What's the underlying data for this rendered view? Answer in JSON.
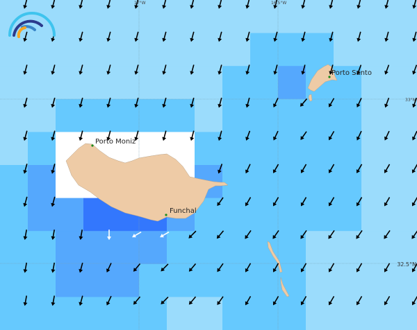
{
  "legend_colors": {
    "level_0": "#9bdcfc",
    "level_1": "#66c9fe",
    "level_2": "#55a8fd",
    "level_3": "#3377fd",
    "masked": "#ffffff",
    "land": "#eecba6",
    "town_dot": "#1a8a1a"
  },
  "grid_labels": {
    "lon_17w": "17°W",
    "lon_16_5w": "16.5°W",
    "lat_33n": "33°N",
    "lat_32_5n": "32.5°N"
  },
  "towns": {
    "porto_moniz": "Porto Moniz",
    "funchal": "Funchal",
    "porto_santo": "Porto Santo"
  },
  "field_levels": [
    [
      0,
      0,
      0,
      0,
      0,
      0,
      0,
      0,
      0,
      0,
      0,
      0,
      0,
      0,
      0
    ],
    [
      0,
      0,
      0,
      0,
      0,
      0,
      0,
      0,
      0,
      1,
      1,
      1,
      0,
      0,
      0
    ],
    [
      0,
      0,
      0,
      0,
      0,
      0,
      0,
      0,
      1,
      1,
      2,
      1,
      1,
      0,
      0
    ],
    [
      0,
      0,
      1,
      1,
      1,
      1,
      1,
      0,
      1,
      1,
      1,
      1,
      1,
      0,
      0
    ],
    [
      0,
      1,
      9,
      9,
      9,
      9,
      9,
      1,
      1,
      1,
      1,
      1,
      1,
      0,
      0
    ],
    [
      1,
      2,
      9,
      9,
      9,
      9,
      9,
      2,
      1,
      1,
      1,
      1,
      1,
      0,
      0
    ],
    [
      1,
      2,
      2,
      3,
      3,
      3,
      2,
      1,
      1,
      1,
      1,
      1,
      1,
      0,
      0
    ],
    [
      1,
      1,
      2,
      2,
      2,
      2,
      1,
      1,
      1,
      1,
      1,
      0,
      0,
      0,
      0
    ],
    [
      1,
      1,
      2,
      2,
      2,
      1,
      1,
      1,
      1,
      1,
      1,
      0,
      0,
      0,
      0
    ],
    [
      1,
      1,
      1,
      1,
      1,
      1,
      0,
      0,
      1,
      1,
      1,
      0,
      0,
      0,
      0
    ]
  ],
  "arrow_directions_deg": [
    [
      195,
      195,
      195,
      195,
      195,
      195,
      195,
      195,
      195,
      195,
      195,
      195,
      195,
      195,
      195
    ],
    [
      195,
      195,
      195,
      195,
      195,
      195,
      195,
      195,
      195,
      195,
      195,
      195,
      195,
      195,
      195
    ],
    [
      195,
      195,
      195,
      195,
      195,
      195,
      195,
      195,
      195,
      195,
      195,
      195,
      200,
      200,
      200
    ],
    [
      195,
      195,
      195,
      195,
      195,
      195,
      195,
      195,
      195,
      205,
      220,
      210,
      205,
      200,
      200
    ],
    [
      195,
      195,
      195,
      195,
      195,
      195,
      195,
      195,
      200,
      205,
      215,
      210,
      205,
      205,
      205
    ],
    [
      195,
      195,
      null,
      null,
      null,
      null,
      null,
      200,
      205,
      210,
      210,
      210,
      210,
      210,
      210
    ],
    [
      195,
      195,
      null,
      null,
      null,
      null,
      null,
      215,
      210,
      210,
      210,
      210,
      210,
      210,
      210
    ],
    [
      190,
      190,
      190,
      180,
      240,
      240,
      225,
      220,
      215,
      215,
      215,
      215,
      215,
      215,
      215
    ],
    [
      190,
      190,
      195,
      205,
      220,
      225,
      220,
      215,
      210,
      210,
      210,
      210,
      210,
      210,
      210
    ],
    [
      190,
      190,
      195,
      205,
      220,
      225,
      220,
      215,
      210,
      210,
      210,
      210,
      210,
      210,
      210
    ]
  ],
  "arrow_color_default": "#000000",
  "arrow_color_overrides": [
    {
      "row": 7,
      "col": 3,
      "color": "#ffffff"
    },
    {
      "row": 7,
      "col": 4,
      "color": "#ffffff"
    },
    {
      "row": 7,
      "col": 5,
      "color": "#ffffff"
    }
  ]
}
